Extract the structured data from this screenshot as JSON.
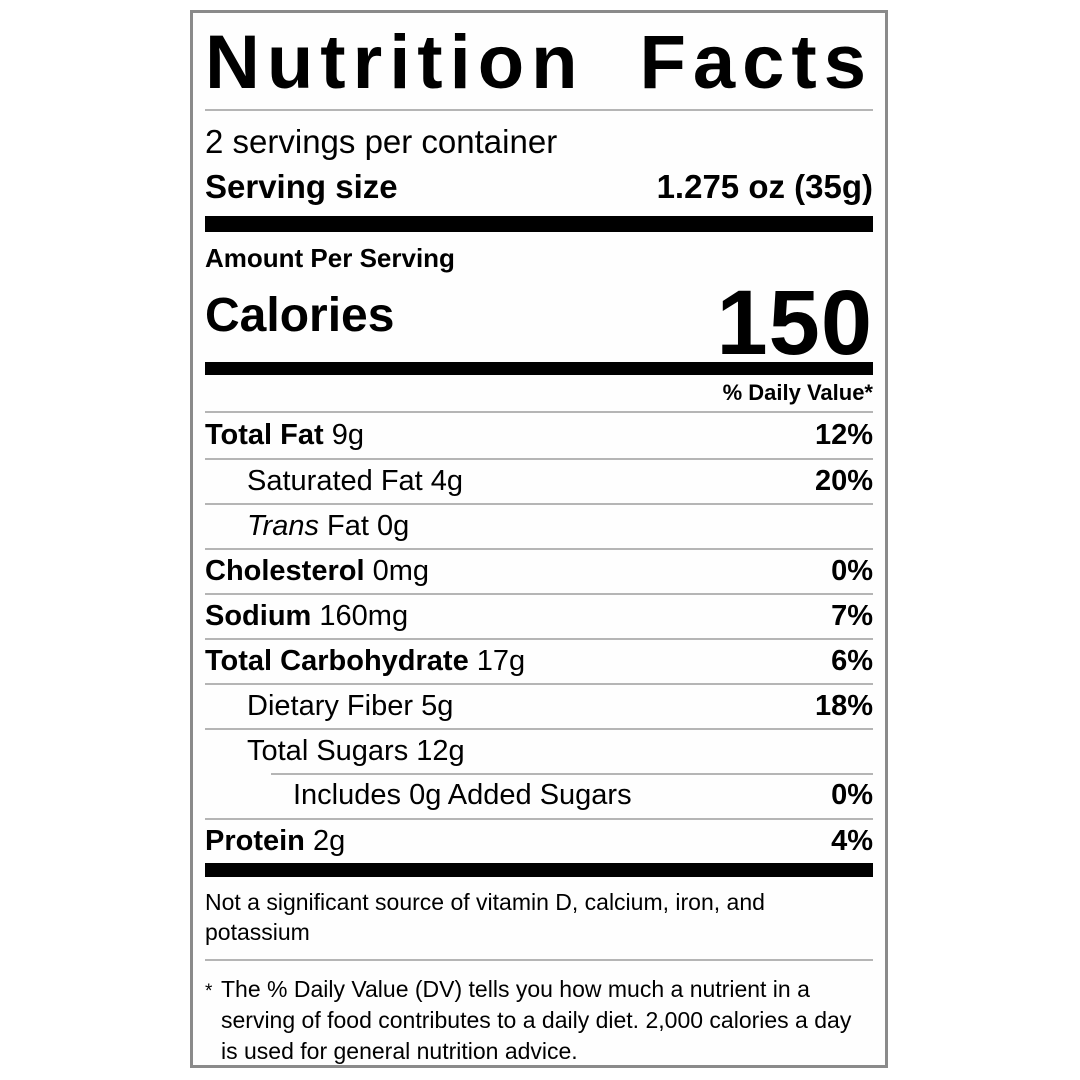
{
  "label": {
    "title": "Nutrition Facts",
    "servings_per_container": "2 servings per container",
    "serving_size_label": "Serving size",
    "serving_size_value": "1.275 oz (35g)",
    "amount_per_serving": "Amount Per Serving",
    "calories_label": "Calories",
    "calories_value": "150",
    "daily_value_header": "% Daily Value*",
    "rows": [
      {
        "parts": [
          {
            "text": "Total Fat",
            "bold": true
          },
          {
            "text": "9g"
          }
        ],
        "dv": "12%",
        "indent": 0
      },
      {
        "parts": [
          {
            "text": "Saturated Fat"
          },
          {
            "text": "4g"
          }
        ],
        "dv": "20%",
        "indent": 1
      },
      {
        "parts": [
          {
            "text": "Trans",
            "italic": true
          },
          {
            "text": "Fat 0g"
          }
        ],
        "dv": "",
        "indent": 1
      },
      {
        "parts": [
          {
            "text": "Cholesterol",
            "bold": true
          },
          {
            "text": "0mg"
          }
        ],
        "dv": "0%",
        "indent": 0
      },
      {
        "parts": [
          {
            "text": "Sodium",
            "bold": true
          },
          {
            "text": "160mg"
          }
        ],
        "dv": "7%",
        "indent": 0
      },
      {
        "parts": [
          {
            "text": "Total Carbohydrate",
            "bold": true
          },
          {
            "text": "17g"
          }
        ],
        "dv": "6%",
        "indent": 0
      },
      {
        "parts": [
          {
            "text": "Dietary Fiber"
          },
          {
            "text": "5g"
          }
        ],
        "dv": "18%",
        "indent": 1
      },
      {
        "parts": [
          {
            "text": "Total Sugars"
          },
          {
            "text": "12g"
          }
        ],
        "dv": "",
        "indent": 1
      },
      {
        "parts": [
          {
            "text": "Includes 0g Added Sugars"
          }
        ],
        "dv": "0%",
        "indent": 2,
        "partial_divider": true
      },
      {
        "parts": [
          {
            "text": "Protein",
            "bold": true
          },
          {
            "text": "2g"
          }
        ],
        "dv": "4%",
        "indent": 0
      }
    ],
    "not_significant_note": "Not a significant source of vitamin D, calcium, iron, and potassium",
    "footnote_marker": "*",
    "footnote": "The % Daily Value (DV) tells you how much a nutrient in a serving of food contributes to a daily diet. 2,000 calories a day is used for general nutrition advice.",
    "colors": {
      "text": "#000000",
      "divider": "#b5b5b5",
      "bar": "#000000",
      "border": "#8a8a8a",
      "background": "#ffffff"
    }
  }
}
